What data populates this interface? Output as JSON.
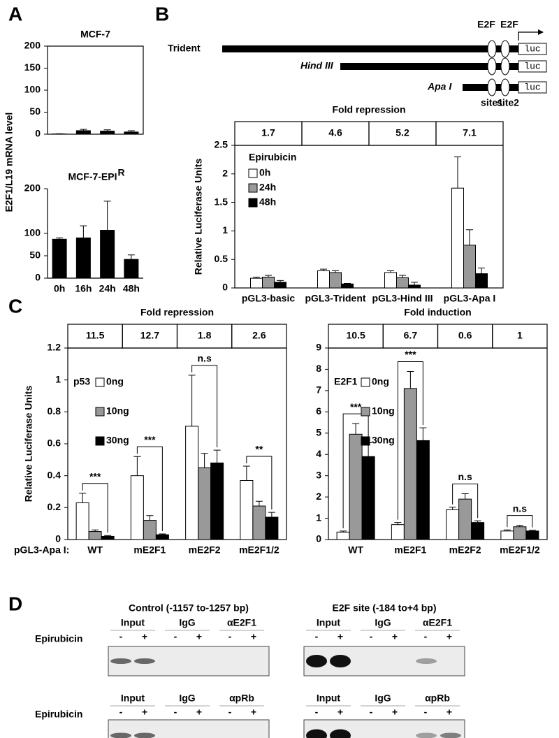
{
  "panel_labels": [
    "A",
    "B",
    "C",
    "D"
  ],
  "chart_data": [
    {
      "type": "bar",
      "title": "MCF-7",
      "y_label": "E2F1/L19 mRNA level",
      "categories": [
        null,
        null,
        null,
        null
      ],
      "series": [
        {
          "color": "#000000",
          "values": [
            0.5,
            8,
            7,
            5
          ],
          "errors": [
            0.5,
            3,
            3,
            3
          ]
        }
      ],
      "ylim": [
        0,
        200
      ],
      "yticks": [
        0,
        50,
        100,
        150,
        200
      ],
      "frame": true
    },
    {
      "type": "bar",
      "title": "MCF-7-EPI",
      "title_superscript": "R",
      "categories": [
        "0h",
        "16h",
        "24h",
        "48h"
      ],
      "series": [
        {
          "color": "#000000",
          "values": [
            87,
            90,
            107,
            42
          ],
          "errors": [
            3,
            27,
            65,
            10
          ]
        }
      ],
      "ylim": [
        0,
        200
      ],
      "yticks": [
        0,
        50,
        100,
        200
      ],
      "frame": false
    },
    {
      "type": "bar",
      "y_label": "Relative Luciferase Units",
      "legend_title": "Epirubicin",
      "header_title": "Fold repression",
      "header_values": [
        1.7,
        4.6,
        5.2,
        7.1
      ],
      "categories": [
        "pGL3-basic",
        "pGL3-Trident",
        "pGL3-Hind III",
        "pGL3-Apa I"
      ],
      "series": [
        {
          "name": "0h",
          "color": "#ffffff",
          "values": [
            0.17,
            0.3,
            0.27,
            1.75
          ],
          "errors": [
            0.02,
            0.03,
            0.03,
            0.55
          ]
        },
        {
          "name": "24h",
          "color": "#999999",
          "values": [
            0.19,
            0.27,
            0.18,
            0.75
          ],
          "errors": [
            0.03,
            0.03,
            0.04,
            0.27
          ]
        },
        {
          "name": "48h",
          "color": "#000000",
          "values": [
            0.1,
            0.07,
            0.05,
            0.25
          ],
          "errors": [
            0.03,
            0.01,
            0.05,
            0.1
          ]
        }
      ],
      "ylim": [
        0,
        2.5
      ],
      "yticks": [
        0,
        0.5,
        1,
        1.5,
        2,
        2.5
      ],
      "frame": true
    },
    {
      "type": "bar",
      "y_label": "Relative Luciferase Units",
      "legend_title": "p53",
      "header_title": "Fold repression",
      "header_values": [
        11.5,
        12.7,
        1.8,
        2.6
      ],
      "category_prefix": "pGL3-Apa I:",
      "categories": [
        "WT",
        "mE2F1",
        "mE2F2",
        "mE2F1/2"
      ],
      "significance": [
        "***",
        "***",
        "n.s",
        "**"
      ],
      "series": [
        {
          "name": "0ng",
          "color": "#ffffff",
          "values": [
            0.23,
            0.4,
            0.71,
            0.37
          ],
          "errors": [
            0.06,
            0.12,
            0.32,
            0.09
          ]
        },
        {
          "name": "10ng",
          "color": "#999999",
          "values": [
            0.05,
            0.12,
            0.45,
            0.21
          ],
          "errors": [
            0.01,
            0.03,
            0.09,
            0.03
          ]
        },
        {
          "name": "30ng",
          "color": "#000000",
          "values": [
            0.02,
            0.03,
            0.48,
            0.14
          ],
          "errors": [
            0.005,
            0.005,
            0.08,
            0.03
          ]
        }
      ],
      "ylim": [
        0,
        1.2
      ],
      "yticks": [
        0,
        0.2,
        0.4,
        0.6,
        0.8,
        1,
        1.2
      ],
      "frame": true
    },
    {
      "type": "bar",
      "legend_title": "E2F1",
      "header_title": "Fold induction",
      "header_values": [
        10.5,
        6.7,
        0.6,
        1
      ],
      "categories": [
        "WT",
        "mE2F1",
        "mE2F2",
        "mE2F1/2"
      ],
      "significance": [
        "***",
        "***",
        "n.s",
        "n.s"
      ],
      "series": [
        {
          "name": "0ng",
          "color": "#ffffff",
          "values": [
            0.35,
            0.7,
            1.4,
            0.4
          ],
          "errors": [
            0.05,
            0.1,
            0.12,
            0.05
          ]
        },
        {
          "name": "10ng",
          "color": "#999999",
          "values": [
            4.95,
            7.1,
            1.9,
            0.6
          ],
          "errors": [
            0.5,
            0.8,
            0.25,
            0.07
          ]
        },
        {
          "name": "30ng",
          "color": "#000000",
          "values": [
            3.9,
            4.65,
            0.8,
            0.4
          ],
          "errors": [
            0.65,
            0.6,
            0.08,
            0.04
          ]
        }
      ],
      "ylim": [
        0,
        9
      ],
      "yticks": [
        0,
        1,
        2,
        3,
        4,
        5,
        6,
        7,
        8,
        9
      ],
      "frame": true
    }
  ],
  "construct_diagram": {
    "constructs": [
      "Trident",
      "Hind III",
      "Apa I"
    ],
    "site_label": "E2F",
    "reporter": "luc",
    "sites": [
      "site1",
      "site2"
    ]
  },
  "chip": {
    "treatment": "Epirubicin",
    "minus": "-",
    "plus": "+",
    "gels": [
      {
        "title": "Control (-1157 to-1257 bp)",
        "rows": [
          [
            "Input",
            "IgG",
            "αE2F1"
          ],
          [
            "Input",
            "IgG",
            "αpRb"
          ]
        ]
      },
      {
        "title": "E2F site (-184 to+4 bp)",
        "rows": [
          [
            "Input",
            "IgG",
            "αE2F1"
          ],
          [
            "Input",
            "IgG",
            "αpRb"
          ]
        ]
      }
    ]
  }
}
